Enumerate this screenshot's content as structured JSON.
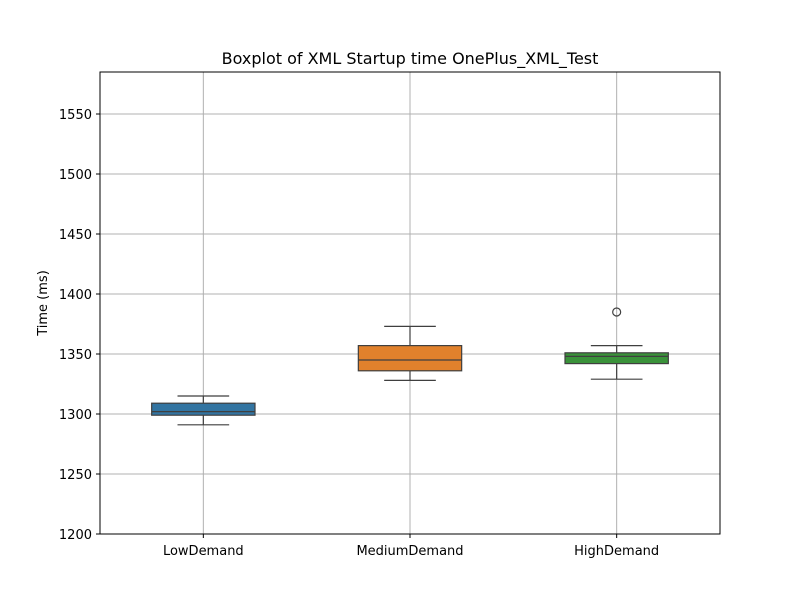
{
  "chart_data": {
    "type": "box",
    "title": "Boxplot of XML Startup time OnePlus_XML_Test",
    "xlabel": "",
    "ylabel": "Time (ms)",
    "ylim": [
      1200,
      1585
    ],
    "yticks": [
      1200,
      1250,
      1300,
      1350,
      1400,
      1450,
      1500,
      1550
    ],
    "grid": true,
    "categories": [
      "LowDemand",
      "MediumDemand",
      "HighDemand"
    ],
    "colors": [
      "#3274a1",
      "#e1812c",
      "#3a923a"
    ],
    "series": [
      {
        "category": "LowDemand",
        "whisker_low": 1291,
        "q1": 1299,
        "median": 1302,
        "q3": 1309,
        "whisker_high": 1315,
        "outliers": []
      },
      {
        "category": "MediumDemand",
        "whisker_low": 1328,
        "q1": 1336,
        "median": 1345,
        "q3": 1357,
        "whisker_high": 1373,
        "outliers": []
      },
      {
        "category": "HighDemand",
        "whisker_low": 1329,
        "q1": 1342,
        "median": 1348,
        "q3": 1351,
        "whisker_high": 1357,
        "outliers": [
          1385
        ]
      }
    ]
  }
}
